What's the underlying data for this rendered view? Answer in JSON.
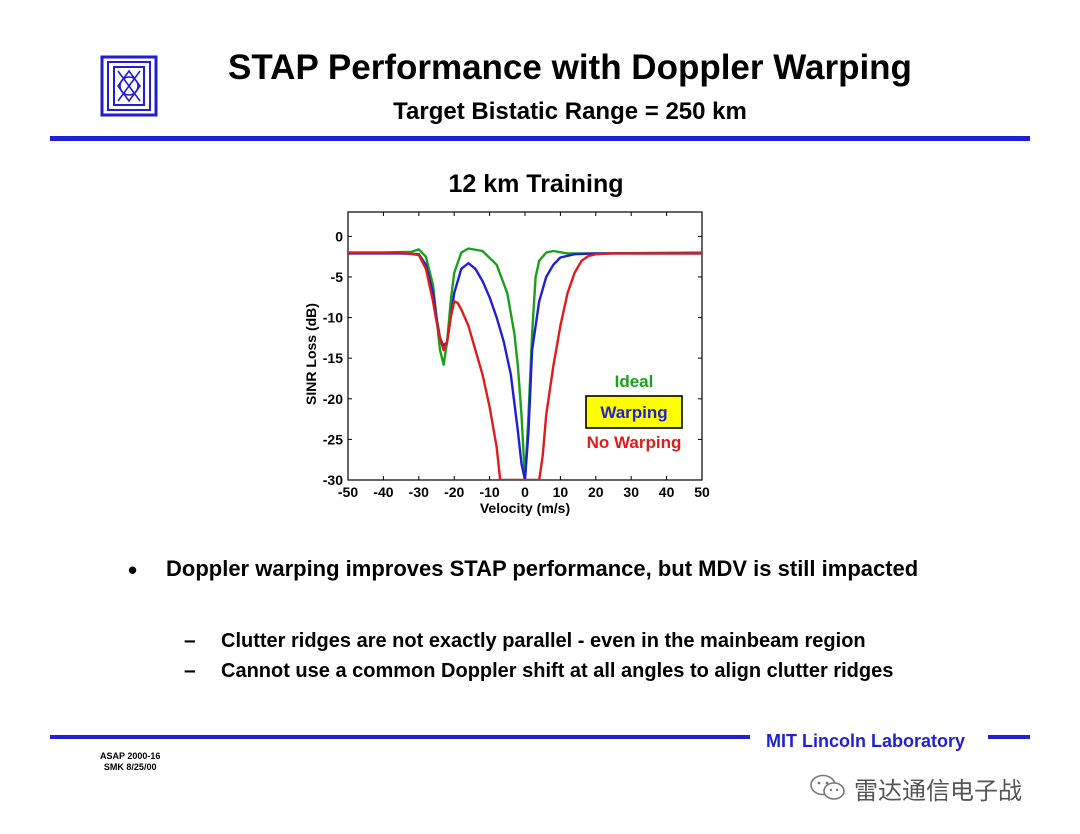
{
  "header": {
    "title": "STAP Performance with Doppler Warping",
    "subtitle": "Target Bistatic Range = 250 km"
  },
  "colors": {
    "rule_blue": "#1f1fd6",
    "ideal": "#1aa01a",
    "warping": "#1f1fd6",
    "no_warping": "#e01b1b",
    "legend_box_fill": "#ffff00"
  },
  "chart_data": {
    "type": "line",
    "title": "12 km Training",
    "xlabel": "Velocity (m/s)",
    "ylabel": "SINR Loss (dB)",
    "xlim": [
      -50,
      50
    ],
    "ylim": [
      -30,
      3
    ],
    "xticks": [
      "-50",
      "-40",
      "-30",
      "-20",
      "-10",
      "0",
      "10",
      "20",
      "30",
      "40",
      "50"
    ],
    "yticks": [
      "0",
      "-5",
      "-10",
      "-15",
      "-20",
      "-25",
      "-30"
    ],
    "legend_placement": "lower-right",
    "series": [
      {
        "name": "Ideal",
        "color": "#1aa01a",
        "x": [
          -50,
          -40,
          -32,
          -30,
          -28,
          -26,
          -25,
          -24,
          -23,
          -22,
          -21,
          -20,
          -18,
          -16,
          -12,
          -8,
          -5,
          -3,
          -2,
          -1,
          0,
          1,
          2,
          3,
          4,
          6,
          8,
          12,
          20,
          50
        ],
        "y": [
          -2.0,
          -2.0,
          -1.9,
          -1.6,
          -2.5,
          -6,
          -10,
          -14,
          -15.8,
          -13,
          -8,
          -4.5,
          -2,
          -1.5,
          -1.8,
          -3.5,
          -7,
          -12,
          -16,
          -22,
          -30,
          -22,
          -12,
          -5,
          -3,
          -2,
          -1.8,
          -2.1,
          -2.1,
          -2.0
        ]
      },
      {
        "name": "Warping",
        "color": "#1f1fd6",
        "x": [
          -50,
          -35,
          -30,
          -28,
          -26,
          -25,
          -24,
          -23,
          -22,
          -21,
          -20,
          -18,
          -16,
          -14,
          -12,
          -10,
          -8,
          -6,
          -4,
          -2,
          -1,
          0,
          1,
          2,
          4,
          6,
          8,
          10,
          14,
          20,
          50
        ],
        "y": [
          -2.1,
          -2.1,
          -2.2,
          -3.5,
          -7,
          -10,
          -12.5,
          -13.5,
          -13,
          -10,
          -7,
          -4,
          -3.3,
          -4,
          -5.5,
          -7.5,
          -10,
          -13,
          -17,
          -24,
          -28,
          -30,
          -24,
          -14,
          -8,
          -5,
          -3.5,
          -2.6,
          -2.2,
          -2.1,
          -2.1
        ]
      },
      {
        "name": "No Warping",
        "color": "#e01b1b",
        "x": [
          -50,
          -35,
          -30,
          -28,
          -26,
          -25,
          -24,
          -23,
          -22,
          -21,
          -20,
          -19,
          -18,
          -16,
          -14,
          -12,
          -10,
          -8,
          -7,
          -7.5,
          4,
          5,
          6,
          8,
          10,
          12,
          14,
          16,
          18,
          20,
          25,
          50
        ],
        "y": [
          -2.0,
          -2.0,
          -2.3,
          -4,
          -8,
          -10.5,
          -12.5,
          -14,
          -13,
          -10,
          -8,
          -8.2,
          -9,
          -11,
          -14,
          -17,
          -21,
          -26,
          -30,
          -30,
          -30,
          -27,
          -22,
          -16,
          -11,
          -7,
          -4.5,
          -3,
          -2.4,
          -2.2,
          -2.1,
          -2.1
        ]
      }
    ]
  },
  "bullets": [
    {
      "text": "Doppler warping improves STAP performance, but MDV is still impacted",
      "sub": [
        "Clutter ridges are not exactly parallel - even in the mainbeam region",
        "Cannot use a common Doppler shift at all angles to align clutter ridges"
      ]
    }
  ],
  "footer": {
    "lab": "MIT Lincoln Laboratory",
    "code_line1": "ASAP 2000-16",
    "code_line2": "SMK 8/25/00",
    "wechat_name": "雷达通信电子战",
    "bullet_glyph": "•",
    "dash_glyph": "–"
  }
}
